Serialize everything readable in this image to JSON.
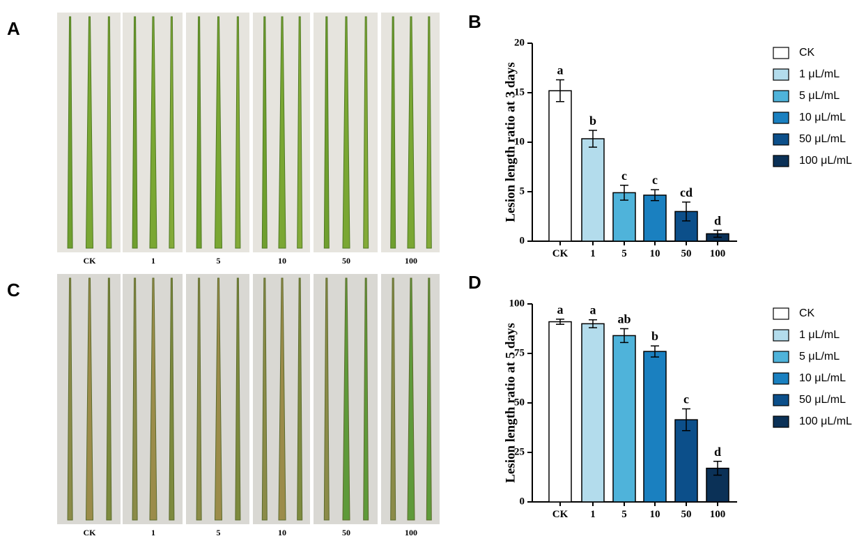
{
  "photo_panels": [
    {
      "letter": "A",
      "labels": [
        "CK",
        "1",
        "5",
        "10",
        "50",
        "100"
      ]
    },
    {
      "letter": "C",
      "labels": [
        "CK",
        "1",
        "5",
        "10",
        "50",
        "100"
      ]
    }
  ],
  "chart_data": [
    {
      "type": "bar",
      "panel_label": "B",
      "ylabel": "Lesion length ratio at 3 days",
      "categories": [
        "CK",
        "1",
        "5",
        "10",
        "50",
        "100"
      ],
      "values": [
        15.2,
        10.35,
        4.9,
        4.65,
        3.0,
        0.75
      ],
      "errors": [
        1.1,
        0.85,
        0.75,
        0.55,
        0.95,
        0.35
      ],
      "bar_labels": [
        "a",
        "b",
        "c",
        "c",
        "cd",
        "d"
      ],
      "colors": [
        "#ffffff",
        "#b3dcec",
        "#4fb3da",
        "#1a80c0",
        "#0c4f8a",
        "#0b3157"
      ],
      "legend": [
        "CK",
        "1 μL/mL",
        "5 μL/mL",
        "10 μL/mL",
        "50 μL/mL",
        "100 μL/mL"
      ],
      "ylim": [
        0,
        20
      ],
      "yticks": [
        0,
        5,
        10,
        15,
        20
      ]
    },
    {
      "type": "bar",
      "panel_label": "D",
      "ylabel": "Lesion length ratio at 5 days",
      "categories": [
        "CK",
        "1",
        "5",
        "10",
        "50",
        "100"
      ],
      "values": [
        91,
        90,
        84,
        76,
        41.5,
        17
      ],
      "errors": [
        1.3,
        2,
        3.5,
        2.8,
        5.5,
        3.5
      ],
      "bar_labels": [
        "a",
        "a",
        "ab",
        "b",
        "c",
        "d"
      ],
      "colors": [
        "#ffffff",
        "#b3dcec",
        "#4fb3da",
        "#1a80c0",
        "#0c4f8a",
        "#0b3157"
      ],
      "legend": [
        "CK",
        "1 μL/mL",
        "5 μL/mL",
        "10 μL/mL",
        "50 μL/mL",
        "100 μL/mL"
      ],
      "ylim": [
        0,
        100
      ],
      "yticks": [
        0,
        25,
        50,
        75,
        100
      ]
    }
  ]
}
